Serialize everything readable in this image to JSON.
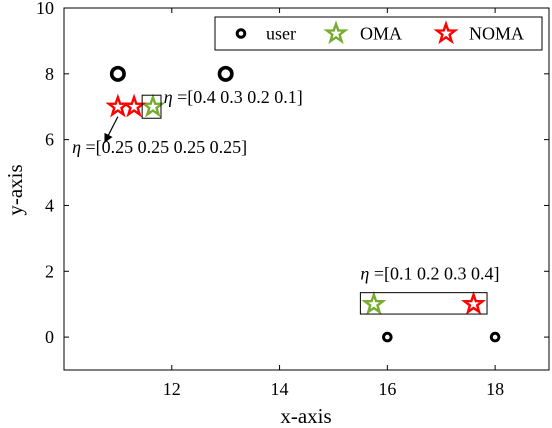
{
  "chart_data": {
    "type": "scatter",
    "xlabel": "x-axis",
    "ylabel": "y-axis",
    "xlim": [
      10,
      19
    ],
    "ylim": [
      -1,
      10
    ],
    "xticks": [
      12,
      14,
      16,
      18
    ],
    "yticks": [
      0,
      2,
      4,
      6,
      8,
      10
    ],
    "grid": false,
    "legend_position": "top-right",
    "series": [
      {
        "name": "user",
        "marker": "circle",
        "color": "#000000",
        "points": [
          [
            11,
            8
          ],
          [
            13,
            8
          ],
          [
            16,
            0
          ],
          [
            18,
            0
          ]
        ],
        "sizes": [
          "large",
          "large",
          "small",
          "small"
        ]
      },
      {
        "name": "OMA",
        "marker": "star",
        "color": "#77AC30",
        "points": [
          [
            11.65,
            7
          ],
          [
            15.75,
            1
          ]
        ]
      },
      {
        "name": "NOMA",
        "marker": "star",
        "color": "#FF0000",
        "points": [
          [
            11,
            7
          ],
          [
            11.3,
            7
          ],
          [
            17.6,
            1
          ]
        ]
      }
    ],
    "annotations": [
      {
        "eta": "η",
        "text": "=[0.4 0.3 0.2 0.1]",
        "box_x": [
          11.45,
          11.8
        ],
        "box_y": [
          6.65,
          7.35
        ],
        "anchor": [
          11.85,
          7.12
        ]
      },
      {
        "eta": "η",
        "text": "=[0.25 0.25 0.25 0.25]",
        "anchor": [
          10.15,
          5.6
        ],
        "arrow_from": [
          11.0,
          6.7
        ],
        "arrow_to": [
          10.75,
          5.9
        ]
      },
      {
        "eta": "η",
        "text": "=[0.1 0.2 0.3 0.4]",
        "box_x": [
          15.5,
          17.85
        ],
        "box_y": [
          0.7,
          1.35
        ],
        "anchor": [
          15.5,
          1.75
        ]
      }
    ]
  }
}
